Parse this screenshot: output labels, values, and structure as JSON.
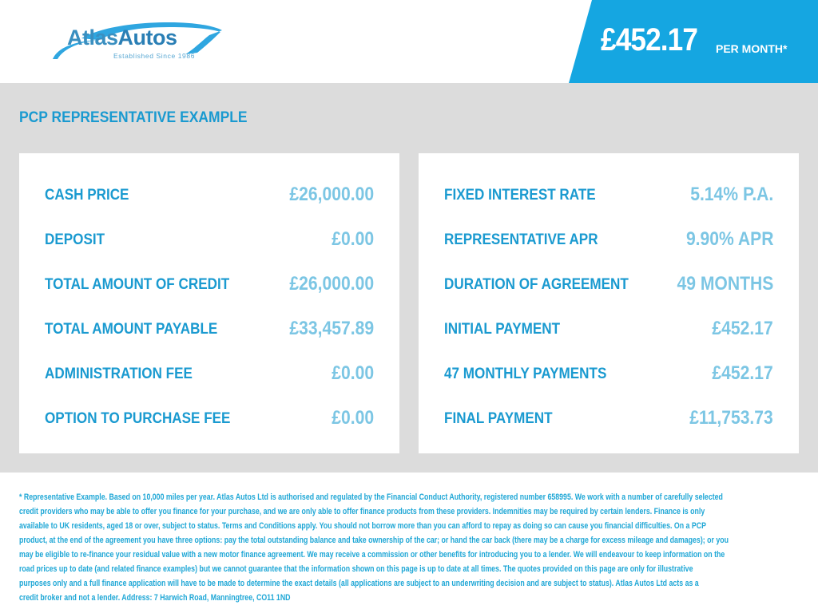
{
  "logo": {
    "name_a": "Atlas",
    "name_b": "Autos",
    "tagline": "Established Since 1986"
  },
  "header": {
    "price": "£452.17",
    "per_month": "PER MONTH*"
  },
  "colors": {
    "banner": "#15a6e1",
    "label": "#1a9ad0",
    "value": "#7cc6e4",
    "background": "#dcdcdc"
  },
  "title": "PCP REPRESENTATIVE EXAMPLE",
  "left": [
    {
      "label": "CASH PRICE",
      "value": "£26,000.00"
    },
    {
      "label": "DEPOSIT",
      "value": "£0.00"
    },
    {
      "label": "TOTAL AMOUNT OF CREDIT",
      "value": "£26,000.00"
    },
    {
      "label": "TOTAL AMOUNT PAYABLE",
      "value": "£33,457.89"
    },
    {
      "label": "ADMINISTRATION FEE",
      "value": "£0.00"
    },
    {
      "label": "OPTION TO PURCHASE FEE",
      "value": "£0.00"
    }
  ],
  "right": [
    {
      "label": "FIXED INTEREST RATE",
      "value": "5.14% P.A."
    },
    {
      "label": "REPRESENTATIVE APR",
      "value": "9.90% APR"
    },
    {
      "label": "DURATION OF AGREEMENT",
      "value": "49 MONTHS"
    },
    {
      "label": "INITIAL PAYMENT",
      "value": "£452.17"
    },
    {
      "label": "47 MONTHLY PAYMENTS",
      "value": "£452.17"
    },
    {
      "label": "FINAL PAYMENT",
      "value": "£11,753.73"
    }
  ],
  "footer": [
    "* Representative Example. Based on 10,000 miles per year. Atlas Autos Ltd is authorised and regulated by the Financial Conduct Authority, registered number 658995. We work with a number of carefully selected",
    "credit providers who may be able to offer you finance for your purchase, and we are only able to offer finance products from these providers. Indemnities may be required by certain lenders. Finance is only",
    "available to UK residents, aged 18 or over, subject to status. Terms and Conditions apply. You should not borrow more than you can afford to repay as doing so can cause you financial difficulties. On a PCP",
    "product, at the end of the agreement you have three options: pay the total outstanding balance and take ownership of the car; or hand the car back (there may be a charge for excess mileage and damages); or you",
    "may be eligible to re-finance your residual value with a new motor finance agreement. We may receive a commission or other benefits for introducing you to a lender. We will endeavour to keep information on the",
    "road prices up to date (and related finance examples) but we cannot guarantee that the information shown on this page is up to date at all times. The quotes provided on this page are only for illustrative",
    "purposes only and a full finance application will have to be made to determine the exact details (all applications are subject to an underwriting decision and are subject to status). Atlas Autos Ltd acts as a",
    "credit broker and not a lender. Address: 7 Harwich Road, Manningtree, CO11 1ND"
  ]
}
